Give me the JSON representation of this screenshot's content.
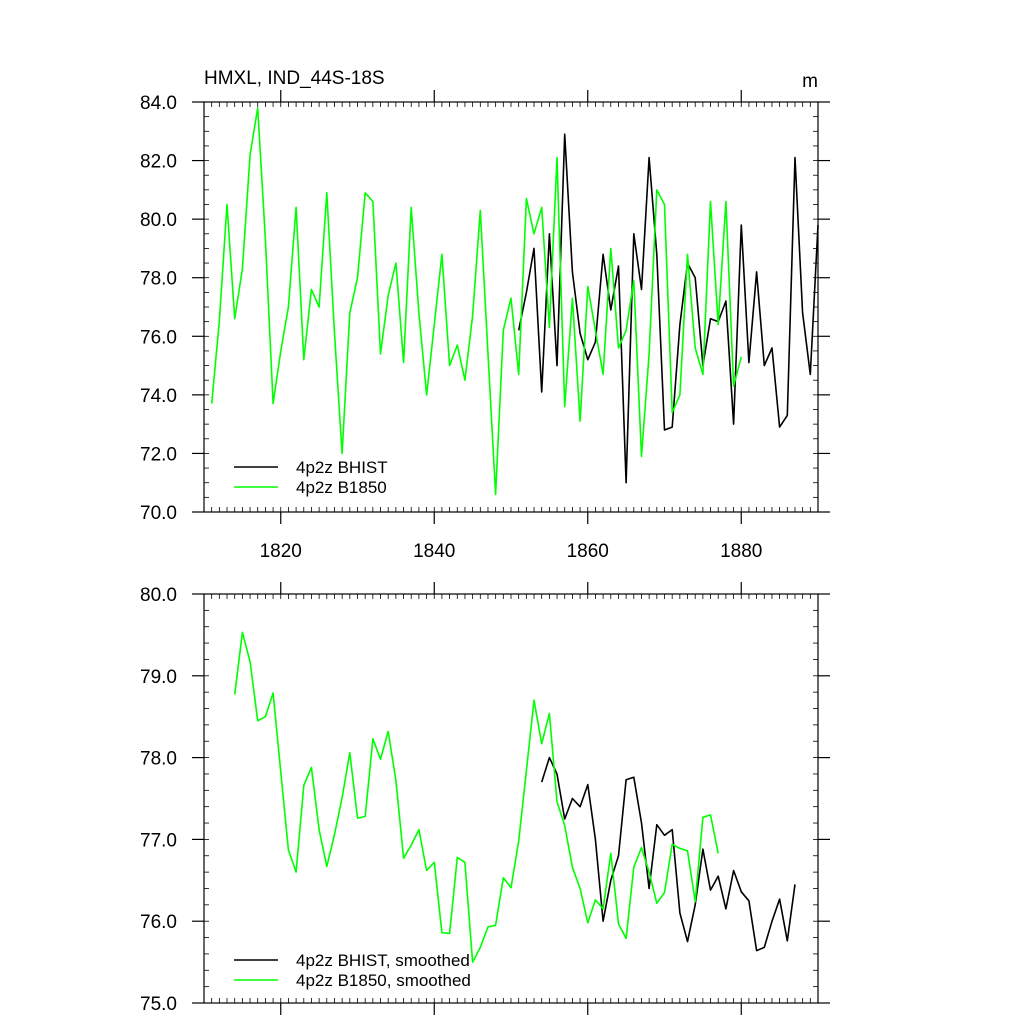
{
  "chart_data": [
    {
      "type": "line",
      "title": "HMXL, IND_44S-18S",
      "units": "m",
      "xlim": [
        1810,
        1890
      ],
      "ylim": [
        70,
        84
      ],
      "x_ticks": [
        1820,
        1840,
        1860,
        1880
      ],
      "x_tick_labels": [
        "1820",
        "1840",
        "1860",
        "1880"
      ],
      "y_ticks": [
        70,
        72,
        74,
        76,
        78,
        80,
        82,
        84
      ],
      "y_tick_labels": [
        "70.0",
        "72.0",
        "74.0",
        "76.0",
        "78.0",
        "80.0",
        "82.0",
        "84.0"
      ],
      "legend_placement": "bottom-left",
      "series": [
        {
          "name": "4p2z BHIST",
          "color": "#000000",
          "x": [
            1851,
            1852,
            1853,
            1854,
            1855,
            1856,
            1857,
            1858,
            1859,
            1860,
            1861,
            1862,
            1863,
            1864,
            1865,
            1866,
            1867,
            1868,
            1869,
            1870,
            1871,
            1872,
            1873,
            1874,
            1875,
            1876,
            1877,
            1878,
            1879,
            1880,
            1881,
            1882,
            1883,
            1884,
            1885,
            1886,
            1887,
            1888,
            1889,
            1890
          ],
          "values": [
            76.2,
            77.5,
            79.0,
            74.1,
            79.5,
            75.0,
            82.9,
            78.2,
            76.1,
            75.2,
            75.8,
            78.8,
            76.9,
            78.4,
            71.0,
            79.5,
            77.6,
            82.1,
            78.8,
            72.8,
            72.9,
            76.4,
            78.5,
            78.0,
            75.0,
            76.6,
            76.5,
            77.2,
            73.0,
            79.8,
            75.1,
            78.2,
            75.0,
            75.6,
            72.9,
            73.3,
            82.1,
            76.8,
            74.7,
            79.8
          ]
        },
        {
          "name": "4p2z B1850",
          "color": "#00ff00",
          "x": [
            1811,
            1812,
            1813,
            1814,
            1815,
            1816,
            1817,
            1818,
            1819,
            1820,
            1821,
            1822,
            1823,
            1824,
            1825,
            1826,
            1827,
            1828,
            1829,
            1830,
            1831,
            1832,
            1833,
            1834,
            1835,
            1836,
            1837,
            1838,
            1839,
            1840,
            1841,
            1842,
            1843,
            1844,
            1845,
            1846,
            1847,
            1848,
            1849,
            1850,
            1851,
            1852,
            1853,
            1854,
            1855,
            1856,
            1857,
            1858,
            1859,
            1860,
            1861,
            1862,
            1863,
            1864,
            1865,
            1866,
            1867,
            1868,
            1869,
            1870,
            1871,
            1872,
            1873,
            1874,
            1875,
            1876,
            1877,
            1878,
            1879,
            1880
          ],
          "values": [
            73.7,
            76.5,
            80.5,
            76.6,
            78.3,
            82.2,
            83.8,
            79.3,
            73.7,
            75.5,
            77.0,
            80.4,
            75.2,
            77.6,
            77.0,
            80.9,
            76.1,
            72.0,
            76.8,
            78.0,
            80.9,
            80.6,
            75.4,
            77.4,
            78.5,
            75.1,
            80.4,
            76.8,
            74.0,
            76.4,
            78.8,
            75.0,
            75.7,
            74.5,
            76.7,
            80.3,
            75.4,
            70.6,
            76.2,
            77.3,
            74.7,
            80.7,
            79.5,
            80.4,
            76.3,
            82.1,
            73.6,
            77.3,
            73.1,
            77.7,
            76.2,
            74.7,
            79.0,
            75.6,
            76.2,
            77.9,
            71.9,
            75.4,
            81.0,
            80.5,
            73.4,
            74.0,
            78.8,
            75.6,
            74.7,
            80.6,
            76.4,
            80.6,
            74.3,
            75.3
          ]
        }
      ]
    },
    {
      "type": "line",
      "title": "",
      "xlim": [
        1810,
        1890
      ],
      "ylim": [
        75,
        80
      ],
      "x_ticks": [
        1820,
        1840,
        1860,
        1880
      ],
      "y_ticks": [
        75,
        76,
        77,
        78,
        79,
        80
      ],
      "y_tick_labels": [
        "75.0",
        "76.0",
        "77.0",
        "78.0",
        "79.0",
        "80.0"
      ],
      "legend_placement": "bottom-left",
      "series": [
        {
          "name": "4p2z BHIST, smoothed",
          "color": "#000000",
          "x": [
            1854,
            1855,
            1856,
            1857,
            1858,
            1859,
            1860,
            1861,
            1862,
            1863,
            1864,
            1865,
            1866,
            1867,
            1868,
            1869,
            1870,
            1871,
            1872,
            1873,
            1874,
            1875,
            1876,
            1877,
            1878,
            1879,
            1880,
            1881,
            1882,
            1883,
            1884,
            1885,
            1886,
            1887
          ],
          "values": [
            77.7,
            78.0,
            77.8,
            77.25,
            77.5,
            77.4,
            77.67,
            77.0,
            76.0,
            76.5,
            76.8,
            77.73,
            77.76,
            77.2,
            76.4,
            77.18,
            77.05,
            77.12,
            76.1,
            75.75,
            76.2,
            76.88,
            76.38,
            76.55,
            76.15,
            76.62,
            76.36,
            76.25,
            75.64,
            75.68,
            76.0,
            76.27,
            75.76,
            76.45
          ]
        },
        {
          "name": "4p2z B1850, smoothed",
          "color": "#00ff00",
          "x": [
            1814,
            1815,
            1816,
            1817,
            1818,
            1819,
            1820,
            1821,
            1822,
            1823,
            1824,
            1825,
            1826,
            1827,
            1828,
            1829,
            1830,
            1831,
            1832,
            1833,
            1834,
            1835,
            1836,
            1837,
            1838,
            1839,
            1840,
            1841,
            1842,
            1843,
            1844,
            1845,
            1846,
            1847,
            1848,
            1849,
            1850,
            1851,
            1852,
            1853,
            1854,
            1855,
            1856,
            1857,
            1858,
            1859,
            1860,
            1861,
            1862,
            1863,
            1864,
            1865,
            1866,
            1867,
            1868,
            1869,
            1870,
            1871,
            1872,
            1873,
            1874,
            1875,
            1876,
            1877
          ],
          "values": [
            78.77,
            79.53,
            79.17,
            78.45,
            78.5,
            78.79,
            77.82,
            76.87,
            76.6,
            77.66,
            77.88,
            77.12,
            76.67,
            77.06,
            77.51,
            78.06,
            77.26,
            77.28,
            78.23,
            77.98,
            78.32,
            77.72,
            76.77,
            76.93,
            77.12,
            76.62,
            76.72,
            75.86,
            75.85,
            76.78,
            76.72,
            75.5,
            75.68,
            75.93,
            75.95,
            76.53,
            76.41,
            76.98,
            77.84,
            78.7,
            78.17,
            78.54,
            77.46,
            77.17,
            76.66,
            76.4,
            75.98,
            76.26,
            76.15,
            76.83,
            75.97,
            75.79,
            76.66,
            76.9,
            76.6,
            76.22,
            76.35,
            76.94,
            76.89,
            76.86,
            76.24,
            77.27,
            77.3,
            76.83
          ]
        }
      ]
    }
  ]
}
